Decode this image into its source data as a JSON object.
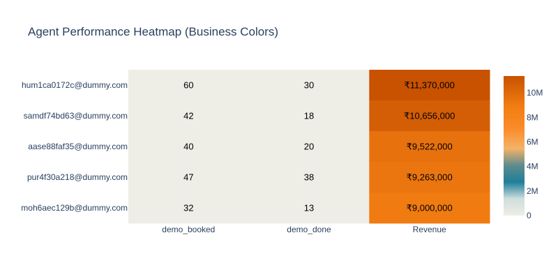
{
  "chart_data": {
    "type": "heatmap",
    "title": "Agent Performance Heatmap (Business Colors)",
    "x_categories": [
      "demo_booked",
      "demo_done",
      "Revenue"
    ],
    "y_categories": [
      "hum1ca0172c@dummy.com",
      "samdf74bd63@dummy.com",
      "aase88faf35@dummy.com",
      "pur4f30a218@dummy.com",
      "moh6aec129b@dummy.com"
    ],
    "values": [
      [
        60,
        30,
        11370000
      ],
      [
        42,
        18,
        10656000
      ],
      [
        40,
        20,
        9522000
      ],
      [
        47,
        38,
        9263000
      ],
      [
        32,
        13,
        9000000
      ]
    ],
    "cell_text": [
      [
        "60",
        "30",
        "₹11,370,000"
      ],
      [
        "42",
        "18",
        "₹10,656,000"
      ],
      [
        "40",
        "20",
        "₹9,522,000"
      ],
      [
        "47",
        "38",
        "₹9,263,000"
      ],
      [
        "32",
        "13",
        "₹9,000,000"
      ]
    ],
    "colorbar": {
      "zmin": 0,
      "zmax": 11370000,
      "tickvals": [
        0,
        2000000,
        4000000,
        6000000,
        8000000,
        10000000
      ],
      "ticktext": [
        "0",
        "2M",
        "4M",
        "6M",
        "8M",
        "10M"
      ],
      "colorscale": [
        [
          0.0,
          "#eeede6"
        ],
        [
          0.12,
          "#cfdedd"
        ],
        [
          0.24,
          "#1f7f9a"
        ],
        [
          0.36,
          "#5f8c8c"
        ],
        [
          0.48,
          "#f3b36a"
        ],
        [
          0.62,
          "#fb8c2a"
        ],
        [
          0.78,
          "#f27d12"
        ],
        [
          1.0,
          "#c85200"
        ]
      ]
    }
  }
}
